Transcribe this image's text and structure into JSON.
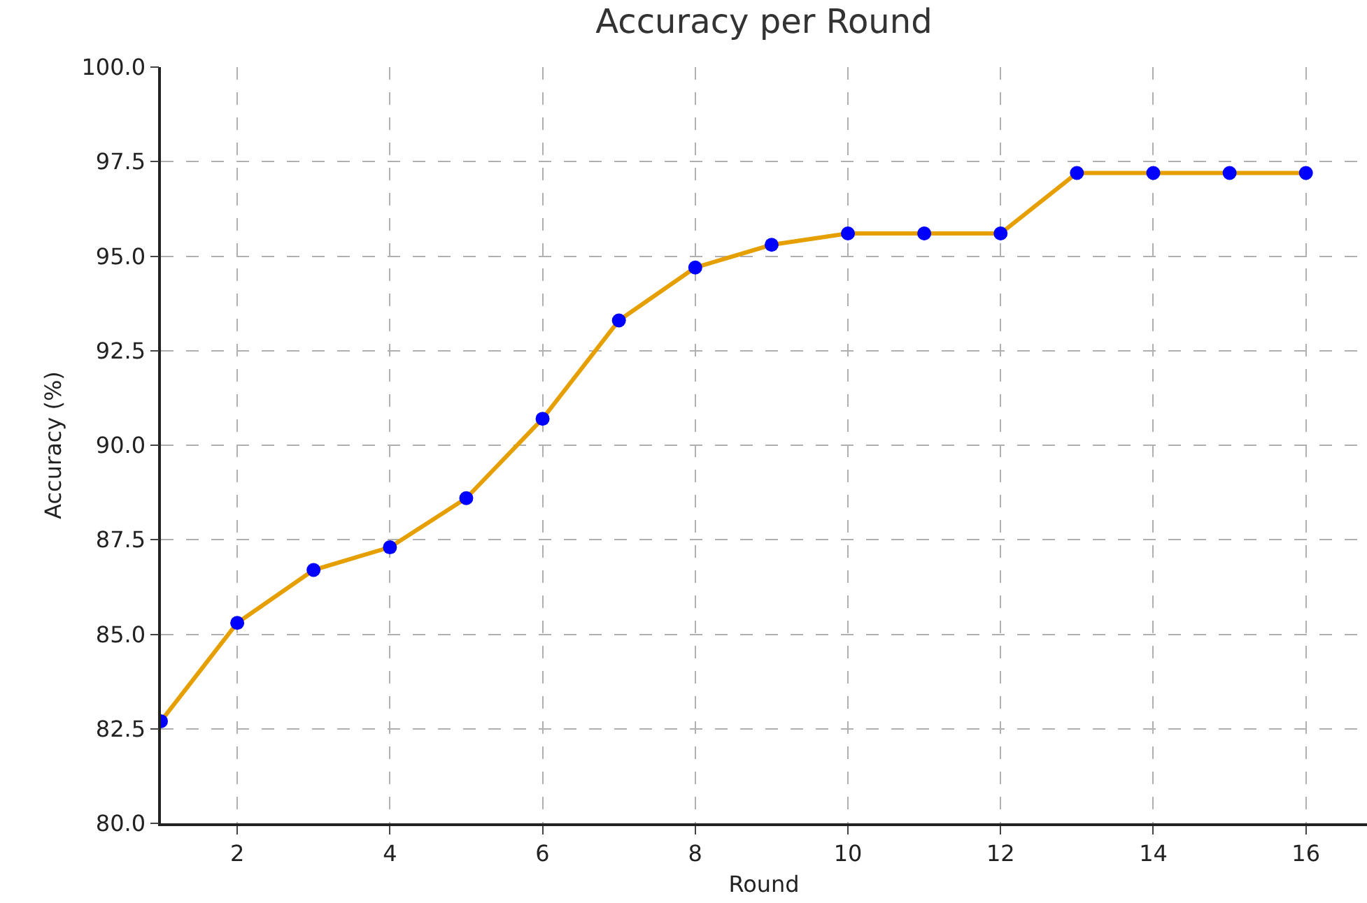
{
  "chart_data": {
    "type": "line",
    "title": "Accuracy per Round",
    "xlabel": "Round",
    "ylabel": "Accuracy (%)",
    "x": [
      1,
      2,
      3,
      4,
      5,
      6,
      7,
      8,
      9,
      10,
      11,
      12,
      13,
      14,
      15,
      16
    ],
    "series": [
      {
        "color": "#e69f00",
        "colors": [
          "#0000ff",
          "#0000ff",
          "#0000ff",
          "#0000ff",
          "#0000ff",
          "#0000ff",
          "#0000ff",
          "#0000ff",
          "#0000ff",
          "#0000ff",
          "#0000ff",
          "#0000ff",
          "#0000ff",
          "#0000ff",
          "#0000ff",
          "#0000ff"
        ],
        "values": [
          82.7,
          85.3,
          86.7,
          87.3,
          88.6,
          90.7,
          93.3,
          94.7,
          95.3,
          95.6,
          95.6,
          95.6,
          97.2,
          97.2,
          97.2,
          97.2
        ]
      }
    ],
    "xlim": [
      1,
      16.8
    ],
    "xticks": [
      2,
      4,
      6,
      8,
      10,
      12,
      14,
      16
    ],
    "ylim": [
      80,
      100
    ],
    "yticks": [
      {
        "value": 80,
        "label": "80.0"
      },
      {
        "value": 82.5,
        "label": "82.5"
      },
      {
        "value": 85,
        "label": "85.0"
      },
      {
        "value": 87.5,
        "label": "87.5"
      },
      {
        "value": 90,
        "label": "90.0"
      },
      {
        "value": 92.5,
        "label": "92.5"
      },
      {
        "value": 95,
        "label": "95.0"
      },
      {
        "value": 97.5,
        "label": "97.5"
      },
      {
        "value": 100,
        "label": "100.0"
      }
    ],
    "grid": true,
    "marker": "circle",
    "line_style": "solid"
  }
}
